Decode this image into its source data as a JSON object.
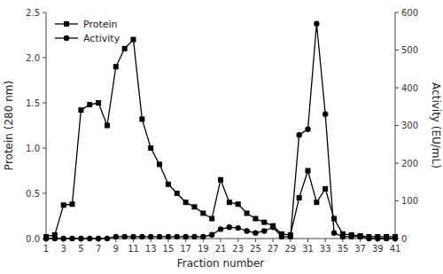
{
  "chart_data": {
    "type": "line",
    "xlabel": "Fraction number",
    "ylabel": "Protein (280 nm)",
    "y2label": "Activity (EU/mL)",
    "x": [
      1,
      2,
      3,
      4,
      5,
      6,
      7,
      8,
      9,
      10,
      11,
      12,
      13,
      14,
      15,
      16,
      17,
      18,
      19,
      20,
      21,
      22,
      23,
      24,
      25,
      26,
      27,
      28,
      29,
      30,
      31,
      32,
      33,
      34,
      35,
      36,
      37,
      38,
      39,
      40,
      41
    ],
    "series": [
      {
        "name": "Protein",
        "color": "#000000",
        "marker": "square",
        "axis": "y",
        "values": [
          0.02,
          0.04,
          0.37,
          0.38,
          1.42,
          1.48,
          1.5,
          1.25,
          1.9,
          2.1,
          2.2,
          1.32,
          1.0,
          0.82,
          0.6,
          0.5,
          0.4,
          0.35,
          0.28,
          0.22,
          0.65,
          0.4,
          0.38,
          0.28,
          0.22,
          0.18,
          0.14,
          0.05,
          0.04,
          0.45,
          0.75,
          0.4,
          0.55,
          0.22,
          0.05,
          0.04,
          0.03,
          0.02,
          0.02,
          0.02,
          0.02
        ]
      },
      {
        "name": "Activity",
        "color": "#000000",
        "marker": "circle",
        "axis": "y2",
        "values": [
          0,
          0,
          0,
          0,
          0,
          0,
          0,
          0,
          5,
          5,
          5,
          5,
          5,
          5,
          5,
          5,
          5,
          5,
          5,
          10,
          25,
          30,
          28,
          20,
          15,
          20,
          30,
          5,
          5,
          275,
          290,
          570,
          330,
          15,
          5,
          5,
          5,
          0,
          0,
          0,
          0
        ]
      }
    ],
    "xlim": [
      1,
      41
    ],
    "xticks": [
      1,
      3,
      5,
      7,
      9,
      11,
      13,
      15,
      17,
      19,
      21,
      23,
      25,
      27,
      29,
      31,
      33,
      35,
      37,
      39,
      41
    ],
    "ylim": [
      0,
      2.5
    ],
    "yticks": [
      {
        "value": 0,
        "label": "0.0"
      },
      0.5,
      {
        "value": 1,
        "label": "1.0"
      },
      1.5,
      {
        "value": 2,
        "label": "2.0"
      },
      2.5
    ],
    "y2lim": [
      0,
      600
    ],
    "y2ticks": [
      0,
      100,
      200,
      300,
      400,
      500,
      600
    ],
    "grid": false,
    "legend": "top-left"
  }
}
